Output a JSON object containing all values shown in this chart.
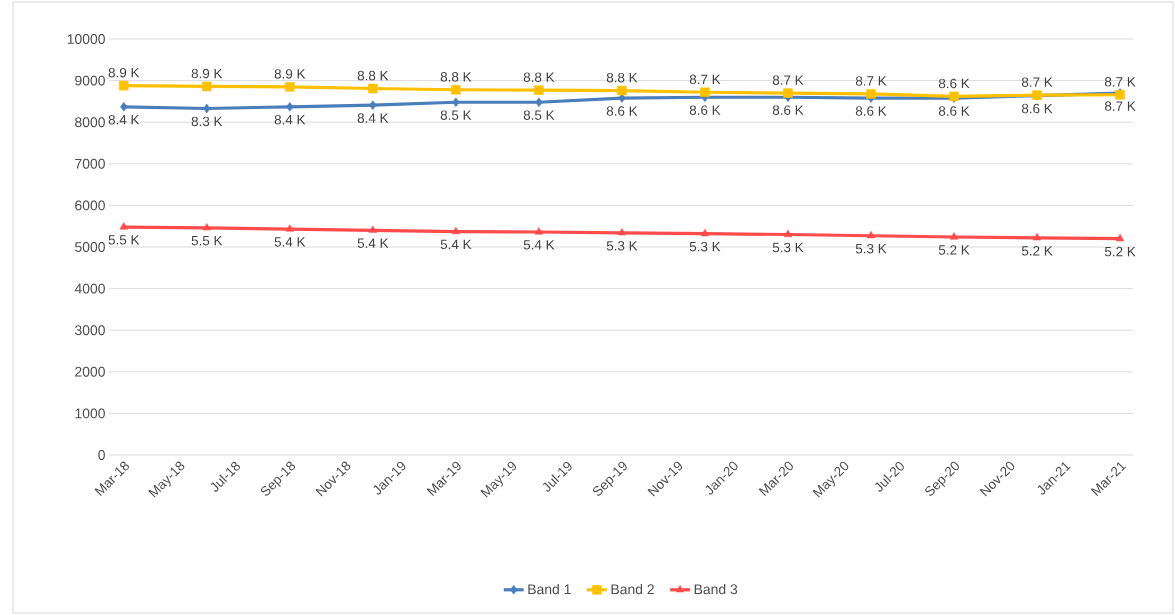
{
  "chart_data": {
    "type": "line",
    "x": [
      "2018-03",
      "2018-06",
      "2018-09",
      "2018-12",
      "2019-03",
      "2019-06",
      "2019-09",
      "2019-12",
      "2020-03",
      "2020-06",
      "2020-09",
      "2020-12",
      "2021-03"
    ],
    "xlim": [
      "2018-02-15",
      "2021-03-15"
    ],
    "xticks": [
      {
        "value": "2018-03",
        "label": "Mar-18"
      },
      {
        "value": "2018-05",
        "label": "May-18"
      },
      {
        "value": "2018-07",
        "label": "Jul-18"
      },
      {
        "value": "2018-09",
        "label": "Sep-18"
      },
      {
        "value": "2018-11",
        "label": "Nov-18"
      },
      {
        "value": "2019-01",
        "label": "Jan-19"
      },
      {
        "value": "2019-03",
        "label": "Mar-19"
      },
      {
        "value": "2019-05",
        "label": "May-19"
      },
      {
        "value": "2019-07",
        "label": "Jul-19"
      },
      {
        "value": "2019-09",
        "label": "Sep-19"
      },
      {
        "value": "2019-11",
        "label": "Nov-19"
      },
      {
        "value": "2020-01",
        "label": "Jan-20"
      },
      {
        "value": "2020-03",
        "label": "Mar-20"
      },
      {
        "value": "2020-05",
        "label": "May-20"
      },
      {
        "value": "2020-07",
        "label": "Jul-20"
      },
      {
        "value": "2020-09",
        "label": "Sep-20"
      },
      {
        "value": "2020-11",
        "label": "Nov-20"
      },
      {
        "value": "2021-01",
        "label": "Jan-21"
      },
      {
        "value": "2021-03",
        "label": "Mar-21"
      }
    ],
    "ylim": [
      0,
      10000
    ],
    "yticks": [
      0,
      1000,
      2000,
      3000,
      4000,
      5000,
      6000,
      7000,
      8000,
      9000,
      10000
    ],
    "grid": "y",
    "legend": "bottom",
    "series": [
      {
        "name": "Band 1",
        "color": "#4a7ebb",
        "marker": "diamond",
        "values": [
          8370,
          8330,
          8370,
          8410,
          8480,
          8480,
          8580,
          8600,
          8600,
          8580,
          8580,
          8640,
          8700
        ],
        "value_labels": [
          "8.4 K",
          "8.3 K",
          "8.4 K",
          "8.4 K",
          "8.5 K",
          "8.5 K",
          "8.6 K",
          "8.6 K",
          "8.6 K",
          "8.6 K",
          "8.6 K",
          "8.6 K",
          "8.7 K"
        ]
      },
      {
        "name": "Band 2",
        "color": "#ffc000",
        "marker": "square",
        "values": [
          8880,
          8860,
          8850,
          8810,
          8780,
          8770,
          8760,
          8720,
          8700,
          8680,
          8620,
          8650,
          8660
        ],
        "value_labels": [
          "8.9 K",
          "8.9 K",
          "8.9 K",
          "8.8 K",
          "8.8 K",
          "8.8 K",
          "8.8 K",
          "8.7 K",
          "8.7 K",
          "8.7 K",
          "8.6 K",
          "8.7 K",
          "8.7 K"
        ]
      },
      {
        "name": "Band 3",
        "color": "#ff4b4b",
        "marker": "triangle",
        "values": [
          5480,
          5460,
          5430,
          5400,
          5370,
          5360,
          5340,
          5320,
          5300,
          5270,
          5240,
          5220,
          5200
        ],
        "value_labels": [
          "5.5 K",
          "5.5 K",
          "5.4 K",
          "5.4 K",
          "5.4 K",
          "5.4 K",
          "5.3 K",
          "5.3 K",
          "5.3 K",
          "5.3 K",
          "5.2 K",
          "5.2 K",
          "5.2 K"
        ]
      }
    ]
  }
}
